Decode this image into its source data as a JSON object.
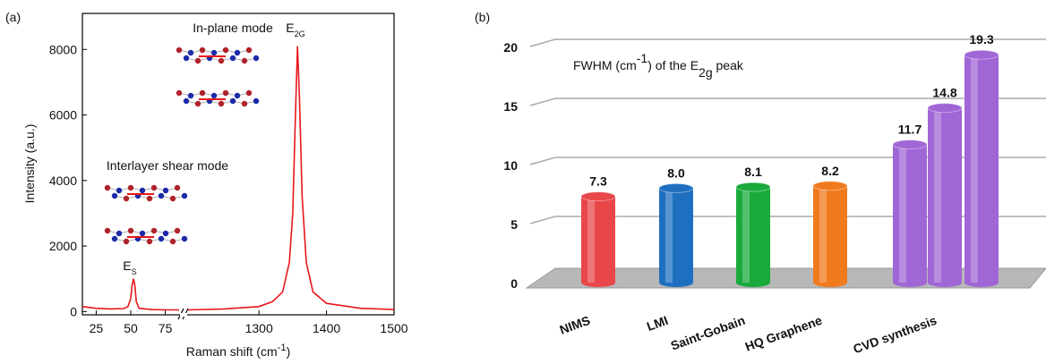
{
  "chart_data": [
    {
      "type": "line",
      "panel": "(a)",
      "ylabel": "Intensity (a.u.)",
      "xlabel": [
        {
          "text": "Raman shift (cm"
        },
        {
          "sup": "-1"
        },
        {
          "text": ")"
        }
      ],
      "color": "#e8161b",
      "ylim": [
        -100,
        9100
      ],
      "yticks": [
        0,
        2000,
        4000,
        6000,
        8000
      ],
      "segments": [
        {
          "xlim": [
            15,
            85
          ],
          "xticks": [
            25,
            50,
            75
          ],
          "x": [
            15,
            25,
            35,
            45,
            48,
            50,
            51,
            52,
            53,
            54,
            56,
            65,
            75,
            85
          ],
          "values": [
            150,
            100,
            80,
            90,
            150,
            400,
            800,
            1000,
            800,
            300,
            100,
            60,
            50,
            50
          ]
        },
        {
          "xlim": [
            1195,
            1500
          ],
          "xticks": [
            1300,
            1400,
            1500
          ],
          "x": [
            1195,
            1250,
            1300,
            1320,
            1335,
            1345,
            1350,
            1354,
            1357,
            1360,
            1364,
            1370,
            1380,
            1400,
            1450,
            1500
          ],
          "values": [
            50,
            80,
            150,
            300,
            600,
            1500,
            3000,
            6000,
            8100,
            6500,
            3500,
            1500,
            600,
            250,
            100,
            60
          ]
        }
      ],
      "annotations": [
        {
          "text": "In-plane mode"
        },
        {
          "parts": [
            {
              "text": "E"
            },
            {
              "sub": "2G"
            }
          ]
        },
        {
          "text": "Interlayer shear mode"
        },
        {
          "parts": [
            {
              "text": "E"
            },
            {
              "sub": "S"
            }
          ]
        }
      ]
    },
    {
      "type": "bar3d",
      "panel": "(b)",
      "title": [
        {
          "text": "FWHM (cm"
        },
        {
          "sup": "-1"
        },
        {
          "text": ") of the E"
        },
        {
          "sub": "2g"
        },
        {
          "text": " peak"
        }
      ],
      "categories": [
        "NIMS",
        "LMI",
        "Saint-Gobain",
        "HQ Graphene",
        null,
        "CVD synthesis",
        null
      ],
      "values": [
        7.3,
        8.0,
        8.1,
        8.2,
        11.7,
        14.8,
        19.3
      ],
      "value_labels": [
        "7.3",
        "8.0",
        "8.1",
        "8.2",
        "11.7",
        "14.8",
        "19.3"
      ],
      "colors": [
        "#e8474a",
        "#1f6fc0",
        "#1aaa3c",
        "#f07a1e",
        "#a066d6",
        "#a066d6",
        "#a066d6"
      ],
      "ylim": [
        0,
        20
      ],
      "yticks": [
        0,
        5,
        10,
        15,
        20
      ],
      "grid": true
    }
  ]
}
